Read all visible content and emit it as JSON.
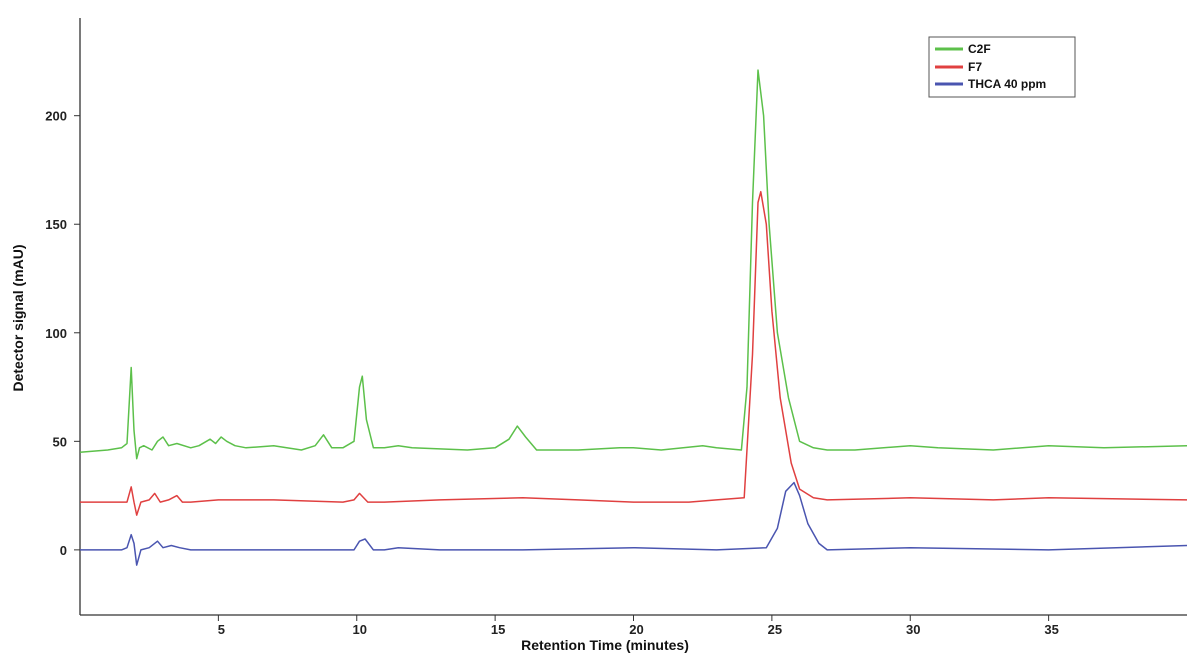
{
  "chart_data": {
    "type": "line",
    "title": "",
    "xlabel": "Retention Time (minutes)",
    "ylabel": "Detector signal (mAU)",
    "xlim": [
      0,
      40
    ],
    "ylim": [
      -30,
      245
    ],
    "x_ticks": [
      5,
      10,
      15,
      20,
      25,
      30,
      35
    ],
    "x_tick_labels": [
      "5",
      "10",
      "15",
      "20",
      "25",
      "30",
      "35"
    ],
    "y_ticks": [
      0,
      50,
      100,
      150,
      200
    ],
    "y_tick_labels": [
      "0",
      "50",
      "100",
      "150",
      "200"
    ],
    "grid": false,
    "legend_position": "top-right",
    "series": [
      {
        "name": "C2F",
        "color": "#5cc04a",
        "x": [
          0,
          1.0,
          1.5,
          1.7,
          1.85,
          1.95,
          2.05,
          2.15,
          2.3,
          2.6,
          2.8,
          3.0,
          3.2,
          3.5,
          4.0,
          4.3,
          4.7,
          4.9,
          5.1,
          5.3,
          5.6,
          6.0,
          7.0,
          8.0,
          8.5,
          8.8,
          9.1,
          9.5,
          9.9,
          10.1,
          10.2,
          10.35,
          10.6,
          11.0,
          11.5,
          12.0,
          14.0,
          15.0,
          15.5,
          15.8,
          16.1,
          16.5,
          17.0,
          18.0,
          19.5,
          20.0,
          21.0,
          22.5,
          23.0,
          23.9,
          24.1,
          24.3,
          24.5,
          24.7,
          24.9,
          25.2,
          25.6,
          26.0,
          26.5,
          27.0,
          28.0,
          30.0,
          31.0,
          33.0,
          35.0,
          37.0,
          40.0
        ],
        "y": [
          45,
          46,
          47,
          49,
          84,
          55,
          42,
          47,
          48,
          46,
          50,
          52,
          48,
          49,
          47,
          48,
          51,
          49,
          52,
          50,
          48,
          47,
          48,
          46,
          48,
          53,
          47,
          47,
          50,
          75,
          80,
          60,
          47,
          47,
          48,
          47,
          46,
          47,
          51,
          57,
          52,
          46,
          46,
          46,
          47,
          47,
          46,
          48,
          47,
          46,
          75,
          160,
          221,
          200,
          150,
          100,
          70,
          50,
          47,
          46,
          46,
          48,
          47,
          46,
          48,
          47,
          48
        ]
      },
      {
        "name": "F7",
        "color": "#e04040",
        "x": [
          0,
          1.5,
          1.7,
          1.85,
          1.95,
          2.05,
          2.2,
          2.5,
          2.7,
          2.9,
          3.2,
          3.5,
          3.7,
          4.0,
          5.0,
          7.0,
          9.5,
          9.9,
          10.1,
          10.4,
          11.0,
          13.0,
          16.0,
          18.0,
          20.0,
          22.0,
          23.0,
          24.0,
          24.3,
          24.5,
          24.6,
          24.8,
          25.0,
          25.3,
          25.7,
          26.0,
          26.5,
          27.0,
          30.0,
          33.0,
          35.0,
          40.0
        ],
        "y": [
          22,
          22,
          22,
          29,
          22,
          16,
          22,
          23,
          26,
          22,
          23,
          25,
          22,
          22,
          23,
          23,
          22,
          23,
          26,
          22,
          22,
          23,
          24,
          23,
          22,
          22,
          23,
          24,
          90,
          160,
          165,
          150,
          110,
          70,
          40,
          28,
          24,
          23,
          24,
          23,
          24,
          23
        ]
      },
      {
        "name": "THCA 40 ppm",
        "color": "#4a55b0",
        "x": [
          0,
          1.5,
          1.7,
          1.85,
          1.95,
          2.05,
          2.2,
          2.5,
          2.8,
          3.0,
          3.3,
          3.6,
          4.0,
          6.0,
          9.0,
          9.9,
          10.1,
          10.3,
          10.6,
          11.0,
          11.5,
          13.0,
          16.0,
          20.0,
          23.0,
          24.8,
          25.2,
          25.5,
          25.8,
          26.0,
          26.3,
          26.7,
          27.0,
          30.0,
          35.0,
          40.0
        ],
        "y": [
          0,
          0,
          1,
          7,
          3,
          -7,
          0,
          1,
          4,
          1,
          2,
          1,
          0,
          0,
          0,
          0,
          4,
          5,
          0,
          0,
          1,
          0,
          0,
          1,
          0,
          1,
          10,
          27,
          31,
          25,
          12,
          3,
          0,
          1,
          0,
          2
        ]
      }
    ]
  }
}
